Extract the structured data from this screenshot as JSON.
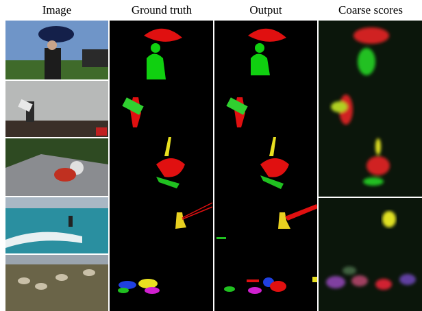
{
  "columns": [
    "Image",
    "Ground truth",
    "Output",
    "Coarse scores"
  ]
}
